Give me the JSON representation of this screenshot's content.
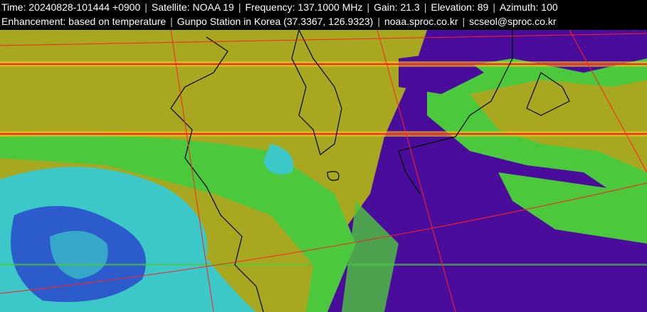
{
  "header": {
    "line1": [
      "Time: 20240828-101444 +0900",
      "Satellite: NOAA 19",
      "Frequency: 137.1000 MHz",
      "Gain: 21.3",
      "Elevation: 89",
      "Azimuth: 100"
    ],
    "line2": [
      "Enhancement: based on temperature",
      "Gunpo Station in Korea (37.3367, 126.9323)",
      "noaa.sproc.co.kr",
      "scseol@sproc.co.kr"
    ],
    "separator": "|"
  },
  "image": {
    "type": "satellite-weather-image",
    "colors": {
      "cold_sea": "#4a0c9a",
      "warm_land": "#a8a820",
      "green": "#4cc83c",
      "cyan": "#3cc8c8",
      "blue": "#2c5ccc",
      "grid": "#ff2020",
      "coastline": "#000000"
    }
  }
}
